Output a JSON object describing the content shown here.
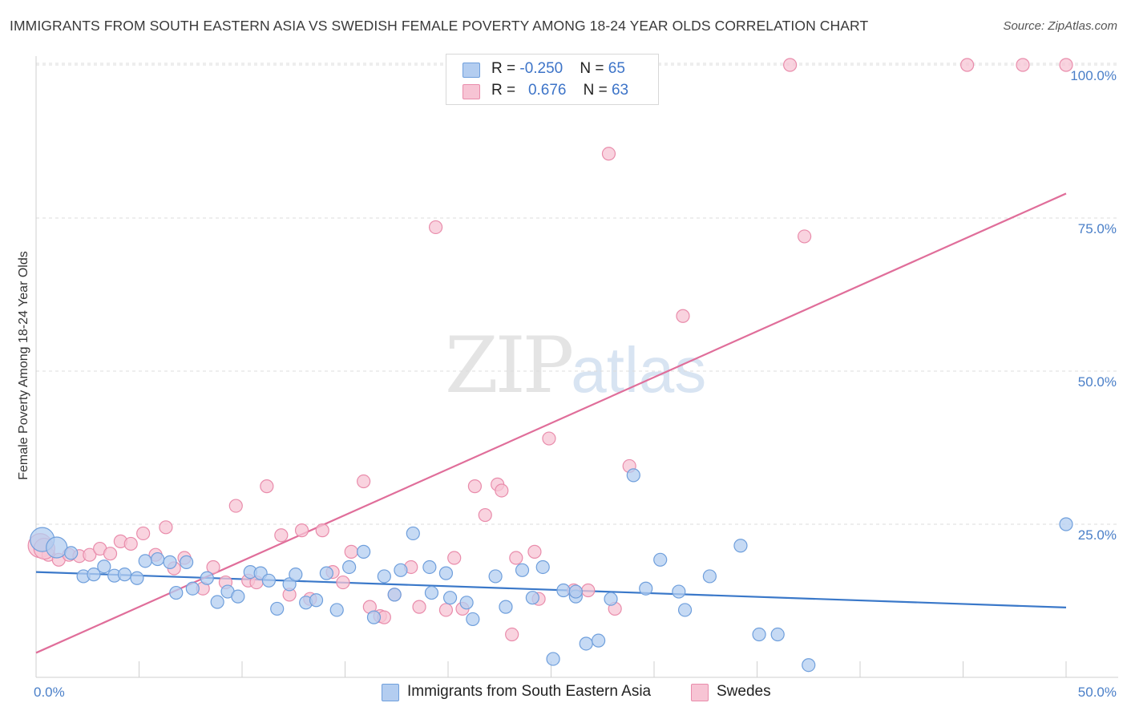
{
  "header": {
    "title": "IMMIGRANTS FROM SOUTH EASTERN ASIA VS SWEDISH FEMALE POVERTY AMONG 18-24 YEAR OLDS CORRELATION CHART",
    "source": "Source: ZipAtlas.com"
  },
  "watermark": {
    "zip": "ZIP",
    "atlas": "atlas"
  },
  "legend": {
    "rows": [
      {
        "r_label": "R = ",
        "r_value": "-0.250",
        "n_label": "N = ",
        "n_value": "65"
      },
      {
        "r_label": "R = ",
        "r_value": "0.676",
        "n_label": "N = ",
        "n_value": "63"
      }
    ]
  },
  "colors": {
    "blue_fill": "#b3cdf0",
    "blue_stroke": "#6f9fdc",
    "blue_line": "#3a78c9",
    "pink_fill": "#f7c4d4",
    "pink_stroke": "#e98cab",
    "pink_line": "#e06e9a"
  },
  "chart_data": {
    "type": "scatter",
    "title": "IMMIGRANTS FROM SOUTH EASTERN ASIA VS SWEDISH FEMALE POVERTY AMONG 18-24 YEAR OLDS CORRELATION CHART",
    "xlabel": "",
    "ylabel": "Female Poverty Among 18-24 Year Olds",
    "xlim": [
      0,
      50
    ],
    "ylim": [
      0,
      102
    ],
    "x_ticks": [
      "0.0%",
      "50.0%"
    ],
    "y_ticks": [
      {
        "value": 25,
        "label": "25.0%"
      },
      {
        "value": 50,
        "label": "50.0%"
      },
      {
        "value": 75,
        "label": "75.0%"
      },
      {
        "value": 100,
        "label": "100.0%"
      }
    ],
    "grid": true,
    "legend_placement": "top-center",
    "series": [
      {
        "name": "Immigrants from South Eastern Asia",
        "trend": {
          "x": [
            0,
            50
          ],
          "y": [
            17.2,
            11.4
          ]
        },
        "points": [
          [
            0.3,
            22.5
          ],
          [
            1.0,
            21.2
          ],
          [
            1.7,
            20.3
          ],
          [
            2.3,
            16.5
          ],
          [
            2.8,
            16.8
          ],
          [
            3.3,
            18.1
          ],
          [
            3.8,
            16.6
          ],
          [
            4.3,
            16.8
          ],
          [
            4.9,
            16.2
          ],
          [
            5.3,
            19.0
          ],
          [
            5.9,
            19.3
          ],
          [
            6.5,
            18.8
          ],
          [
            6.8,
            13.8
          ],
          [
            7.3,
            18.8
          ],
          [
            7.6,
            14.5
          ],
          [
            8.3,
            16.2
          ],
          [
            8.8,
            12.3
          ],
          [
            9.3,
            14.0
          ],
          [
            9.8,
            13.2
          ],
          [
            10.4,
            17.2
          ],
          [
            10.9,
            17.0
          ],
          [
            11.3,
            15.8
          ],
          [
            11.7,
            11.2
          ],
          [
            12.3,
            15.2
          ],
          [
            12.6,
            16.8
          ],
          [
            13.1,
            12.2
          ],
          [
            13.6,
            12.6
          ],
          [
            14.1,
            17.0
          ],
          [
            14.6,
            11.0
          ],
          [
            15.2,
            18.0
          ],
          [
            15.9,
            20.5
          ],
          [
            16.4,
            9.8
          ],
          [
            16.9,
            16.5
          ],
          [
            17.4,
            13.5
          ],
          [
            17.7,
            17.5
          ],
          [
            18.3,
            23.5
          ],
          [
            19.1,
            18.0
          ],
          [
            19.2,
            13.8
          ],
          [
            19.9,
            17.0
          ],
          [
            20.1,
            13.0
          ],
          [
            20.9,
            12.2
          ],
          [
            21.2,
            9.5
          ],
          [
            22.3,
            16.5
          ],
          [
            22.8,
            11.5
          ],
          [
            23.6,
            17.5
          ],
          [
            24.1,
            13.0
          ],
          [
            24.6,
            18.0
          ],
          [
            25.1,
            3.0
          ],
          [
            25.6,
            14.2
          ],
          [
            26.2,
            13.2
          ],
          [
            26.7,
            5.5
          ],
          [
            27.3,
            6.0
          ],
          [
            27.9,
            12.8
          ],
          [
            29.0,
            33.0
          ],
          [
            29.6,
            14.5
          ],
          [
            30.3,
            19.2
          ],
          [
            31.2,
            14.0
          ],
          [
            31.5,
            11.0
          ],
          [
            32.7,
            16.5
          ],
          [
            34.2,
            21.5
          ],
          [
            35.1,
            7.0
          ],
          [
            36.0,
            7.0
          ],
          [
            37.5,
            2.0
          ],
          [
            50.0,
            25.0
          ],
          [
            26.2,
            14.0
          ]
        ]
      },
      {
        "name": "Swedes",
        "trend": {
          "x": [
            0,
            50
          ],
          "y": [
            4.0,
            79.0
          ]
        },
        "points": [
          [
            0.2,
            21.5
          ],
          [
            0.6,
            20.0
          ],
          [
            1.1,
            19.2
          ],
          [
            1.6,
            20.0
          ],
          [
            2.1,
            19.8
          ],
          [
            2.6,
            20.0
          ],
          [
            3.1,
            21.0
          ],
          [
            3.6,
            20.2
          ],
          [
            4.1,
            22.2
          ],
          [
            4.6,
            21.8
          ],
          [
            5.2,
            23.5
          ],
          [
            5.8,
            20.0
          ],
          [
            6.3,
            24.5
          ],
          [
            6.7,
            17.8
          ],
          [
            7.2,
            19.5
          ],
          [
            8.1,
            14.5
          ],
          [
            8.6,
            18.0
          ],
          [
            9.2,
            15.5
          ],
          [
            9.7,
            28.0
          ],
          [
            10.3,
            15.8
          ],
          [
            10.7,
            15.5
          ],
          [
            11.2,
            31.2
          ],
          [
            11.9,
            23.2
          ],
          [
            12.3,
            13.5
          ],
          [
            12.9,
            24.0
          ],
          [
            13.3,
            12.8
          ],
          [
            13.9,
            24.0
          ],
          [
            14.4,
            17.2
          ],
          [
            14.9,
            15.5
          ],
          [
            15.3,
            20.5
          ],
          [
            15.9,
            32.0
          ],
          [
            16.2,
            11.5
          ],
          [
            16.7,
            10.0
          ],
          [
            17.4,
            13.5
          ],
          [
            18.2,
            18.0
          ],
          [
            18.6,
            11.5
          ],
          [
            19.4,
            73.5
          ],
          [
            19.9,
            11.0
          ],
          [
            20.3,
            19.5
          ],
          [
            20.7,
            11.2
          ],
          [
            21.3,
            31.2
          ],
          [
            21.8,
            26.5
          ],
          [
            22.4,
            31.5
          ],
          [
            22.6,
            30.5
          ],
          [
            23.1,
            7.0
          ],
          [
            23.3,
            19.5
          ],
          [
            24.2,
            20.5
          ],
          [
            24.4,
            12.8
          ],
          [
            24.9,
            39.0
          ],
          [
            26.1,
            14.2
          ],
          [
            26.8,
            14.2
          ],
          [
            27.8,
            85.5
          ],
          [
            28.1,
            11.2
          ],
          [
            28.8,
            34.5
          ],
          [
            29.6,
            100.0
          ],
          [
            31.4,
            59.0
          ],
          [
            36.6,
            100.0
          ],
          [
            37.3,
            72.0
          ],
          [
            45.2,
            100.0
          ],
          [
            47.9,
            100.0
          ],
          [
            50.0,
            100.0
          ],
          [
            0.4,
            21.0
          ],
          [
            16.9,
            9.8
          ]
        ]
      }
    ]
  }
}
